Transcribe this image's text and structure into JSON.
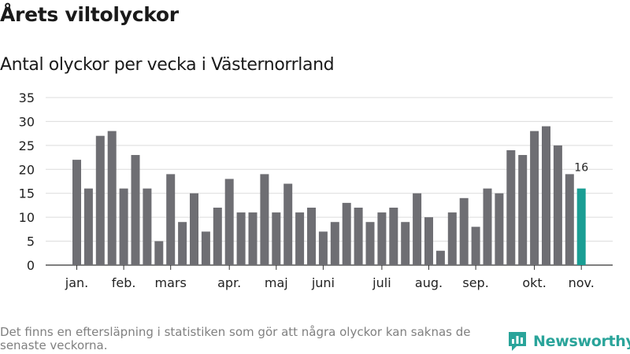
{
  "chart_data": {
    "type": "bar",
    "title": "Årets viltolyckor",
    "subtitle": "Antal olyckor per vecka i Västernorrland",
    "ylabel": "",
    "xlabel": "",
    "ylim": [
      0,
      35
    ],
    "yticks": [
      0,
      5,
      10,
      15,
      20,
      25,
      30,
      35
    ],
    "grid": true,
    "series": [
      {
        "name": "Antal olyckor per vecka",
        "values": [
          22,
          16,
          27,
          28,
          16,
          23,
          16,
          5,
          19,
          9,
          15,
          7,
          12,
          18,
          11,
          11,
          19,
          11,
          17,
          11,
          12,
          7,
          9,
          13,
          12,
          9,
          11,
          12,
          9,
          15,
          10,
          3,
          11,
          14,
          8,
          16,
          15,
          24,
          23,
          28,
          29,
          25,
          19,
          16
        ]
      }
    ],
    "x_month_labels": [
      {
        "label": "jan.",
        "week": 1
      },
      {
        "label": "feb.",
        "week": 5
      },
      {
        "label": "mars",
        "week": 9
      },
      {
        "label": "apr.",
        "week": 14
      },
      {
        "label": "maj",
        "week": 18
      },
      {
        "label": "juni",
        "week": 22
      },
      {
        "label": "juli",
        "week": 27
      },
      {
        "label": "aug.",
        "week": 31
      },
      {
        "label": "sep.",
        "week": 35
      },
      {
        "label": "okt.",
        "week": 40
      },
      {
        "label": "nov.",
        "week": 44
      }
    ],
    "highlight_index": 43,
    "highlight_label": "16",
    "bar_color": "#6e6e73",
    "highlight_color": "#1a9e94"
  },
  "footnote": "Det finns en eftersläpning i statistiken som gör att några olyckor kan saknas de senaste veckorna.",
  "brand": {
    "name": "Newsworthy",
    "logo_icon": "newsworthy-logo-icon",
    "color": "#2aa49a"
  }
}
